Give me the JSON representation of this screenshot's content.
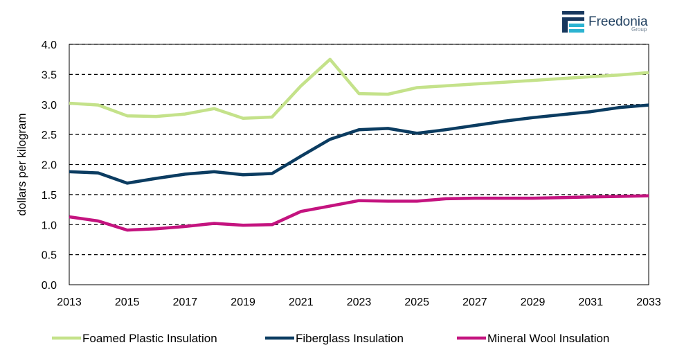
{
  "logo": {
    "name": "Freedonia",
    "sub": "Group",
    "colors": {
      "dark": "#17375e",
      "accent": "#2bb3d1"
    }
  },
  "chart_data": {
    "type": "line",
    "title": "",
    "xlabel": "",
    "ylabel": "dollars per kilogram",
    "xlim": [
      2013,
      2033
    ],
    "ylim": [
      0.0,
      4.0
    ],
    "x": [
      2013,
      2014,
      2015,
      2016,
      2017,
      2018,
      2019,
      2020,
      2021,
      2022,
      2023,
      2024,
      2025,
      2026,
      2027,
      2028,
      2029,
      2030,
      2031,
      2032,
      2033
    ],
    "x_ticks": [
      "2013",
      "2015",
      "2017",
      "2019",
      "2021",
      "2023",
      "2025",
      "2027",
      "2029",
      "2031",
      "2033"
    ],
    "y_ticks": [
      "0.0",
      "0.5",
      "1.0",
      "1.5",
      "2.0",
      "2.5",
      "3.0",
      "3.5",
      "4.0"
    ],
    "grid": "horizontal dashed",
    "legend_position": "bottom",
    "series": [
      {
        "name": "Foamed Plastic Insulation",
        "color": "#c4e28a",
        "values": [
          3.02,
          2.99,
          2.81,
          2.8,
          2.84,
          2.93,
          2.77,
          2.79,
          3.31,
          3.75,
          3.18,
          3.17,
          3.28,
          3.31,
          3.34,
          3.37,
          3.4,
          3.43,
          3.46,
          3.49,
          3.53
        ]
      },
      {
        "name": "Fiberglass Insulation",
        "color": "#0b3c61",
        "values": [
          1.88,
          1.86,
          1.69,
          1.77,
          1.84,
          1.88,
          1.83,
          1.85,
          2.14,
          2.42,
          2.58,
          2.6,
          2.52,
          2.58,
          2.65,
          2.72,
          2.78,
          2.83,
          2.88,
          2.95,
          2.99
        ]
      },
      {
        "name": "Mineral Wool Insulation",
        "color": "#c4137f",
        "values": [
          1.13,
          1.06,
          0.91,
          0.93,
          0.97,
          1.02,
          0.99,
          1.0,
          1.22,
          1.31,
          1.4,
          1.39,
          1.39,
          1.43,
          1.44,
          1.44,
          1.44,
          1.45,
          1.46,
          1.47,
          1.48
        ]
      }
    ]
  }
}
